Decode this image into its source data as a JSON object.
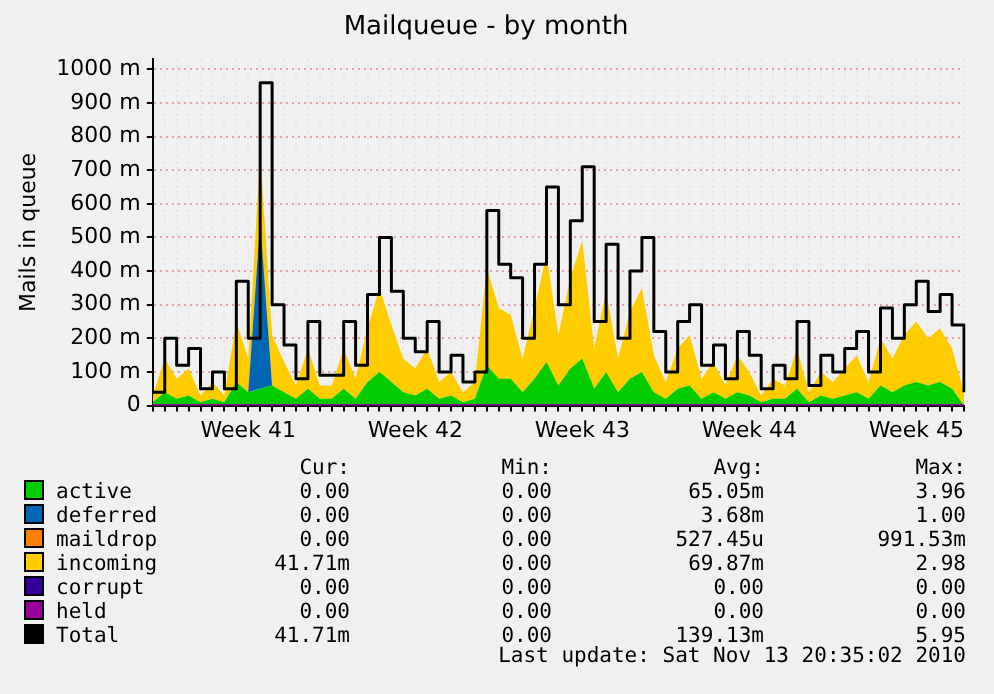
{
  "chart_data": {
    "type": "area",
    "title": "Mailqueue - by month",
    "ylabel": "Mails in queue",
    "stacked": true,
    "marker": "none",
    "grid": true,
    "legend": "bottom",
    "categories": [
      null,
      null,
      null,
      null,
      null,
      null,
      null,
      null,
      "Week 41",
      null,
      null,
      null,
      null,
      null,
      null,
      null,
      null,
      null,
      null,
      null,
      null,
      null,
      "Week 42",
      null,
      null,
      null,
      null,
      null,
      null,
      null,
      null,
      null,
      null,
      null,
      null,
      null,
      "Week 43",
      null,
      null,
      null,
      null,
      null,
      null,
      null,
      null,
      null,
      null,
      null,
      null,
      null,
      "Week 44",
      null,
      null,
      null,
      null,
      null,
      null,
      null,
      null,
      null,
      null,
      null,
      null,
      null,
      "Week 45",
      null,
      null,
      null,
      null
    ],
    "ylim": [
      0,
      1030
    ],
    "yticks": [
      0,
      {
        "value": 100,
        "label": "100 m"
      },
      {
        "value": 200,
        "label": "200 m"
      },
      {
        "value": 300,
        "label": "300 m"
      },
      {
        "value": 400,
        "label": "400 m"
      },
      {
        "value": 500,
        "label": "500 m"
      },
      {
        "value": 600,
        "label": "600 m"
      },
      {
        "value": 700,
        "label": "700 m"
      },
      {
        "value": 800,
        "label": "800 m"
      },
      {
        "value": 900,
        "label": "900 m"
      },
      {
        "value": 1000,
        "label": "1000 m"
      }
    ],
    "series": [
      {
        "name": "active",
        "color": "#00cc00",
        "values": [
          10,
          40,
          20,
          30,
          10,
          20,
          10,
          70,
          40,
          50,
          60,
          40,
          20,
          50,
          20,
          20,
          50,
          20,
          70,
          100,
          70,
          40,
          30,
          50,
          20,
          30,
          10,
          20,
          120,
          80,
          80,
          40,
          80,
          130,
          60,
          110,
          140,
          50,
          100,
          40,
          80,
          100,
          40,
          20,
          50,
          60,
          20,
          40,
          20,
          40,
          30,
          10,
          20,
          20,
          50,
          10,
          30,
          20,
          30,
          40,
          20,
          60,
          40,
          60,
          70,
          60,
          70,
          50,
          0
        ]
      },
      {
        "name": "deferred",
        "color": "#0066b3",
        "values": [
          0,
          0,
          0,
          0,
          0,
          0,
          0,
          0,
          0,
          500,
          0,
          0,
          0,
          0,
          0,
          0,
          0,
          0,
          0,
          0,
          0,
          0,
          0,
          0,
          0,
          0,
          0,
          0,
          0,
          0,
          0,
          0,
          0,
          0,
          0,
          0,
          0,
          0,
          0,
          0,
          0,
          0,
          0,
          0,
          0,
          0,
          0,
          0,
          0,
          0,
          0,
          0,
          0,
          0,
          0,
          0,
          0,
          0,
          0,
          0,
          0,
          0,
          0,
          0,
          0,
          0,
          0,
          0,
          0
        ]
      },
      {
        "name": "maildrop",
        "type": "line",
        "color": "#ff8000",
        "values": [
          null,
          null,
          null,
          null,
          null,
          null,
          null,
          null,
          null,
          null,
          null,
          null,
          null,
          null,
          null,
          null,
          null,
          null,
          null,
          null,
          null,
          null,
          null,
          null,
          null,
          null,
          null,
          null,
          null,
          null,
          null,
          null,
          null,
          null,
          null,
          null,
          null,
          null,
          null,
          null,
          null,
          null,
          null,
          null,
          null,
          null,
          null,
          null,
          null,
          null,
          null,
          null,
          null,
          null,
          null,
          null,
          null,
          null,
          null,
          null,
          null,
          null,
          null,
          null,
          null,
          null,
          null,
          null,
          null
        ]
      },
      {
        "name": "incoming",
        "color": "#ffcc00",
        "values": [
          20,
          100,
          60,
          80,
          20,
          50,
          20,
          180,
          100,
          200,
          150,
          90,
          40,
          120,
          40,
          40,
          120,
          60,
          160,
          250,
          170,
          100,
          80,
          120,
          50,
          70,
          30,
          50,
          290,
          210,
          190,
          100,
          210,
          320,
          150,
          270,
          350,
          120,
          240,
          100,
          200,
          250,
          110,
          50,
          120,
          150,
          60,
          90,
          40,
          110,
          70,
          20,
          60,
          40,
          120,
          30,
          70,
          50,
          80,
          110,
          50,
          140,
          100,
          150,
          180,
          140,
          160,
          120,
          40
        ]
      },
      {
        "name": "corrupt",
        "type": "line",
        "color": "#330099",
        "values": [
          null,
          null,
          null,
          null,
          null,
          null,
          null,
          null,
          null,
          null,
          null,
          null,
          null,
          null,
          null,
          null,
          null,
          null,
          null,
          null,
          null,
          null,
          null,
          null,
          null,
          null,
          null,
          null,
          null,
          null,
          null,
          null,
          null,
          null,
          null,
          null,
          null,
          null,
          null,
          null,
          null,
          null,
          null,
          null,
          null,
          null,
          null,
          null,
          null,
          null,
          null,
          null,
          null,
          null,
          null,
          null,
          null,
          null,
          null,
          null,
          null,
          null,
          null,
          null,
          null,
          null,
          null,
          null,
          null
        ]
      },
      {
        "name": "held",
        "type": "line",
        "color": "#990099",
        "values": [
          0,
          0,
          0,
          0,
          0,
          0,
          0,
          0,
          0,
          0,
          0,
          0,
          0,
          0,
          0,
          0,
          0,
          0,
          0,
          0,
          0,
          0,
          0,
          0,
          0,
          0,
          0,
          0,
          0,
          0,
          0,
          0,
          0,
          0,
          0,
          0,
          0,
          0,
          0,
          0,
          0,
          0,
          0,
          0,
          0,
          0,
          0,
          0,
          0,
          0,
          0,
          0,
          0,
          0,
          0,
          0,
          0,
          0,
          0,
          0,
          0,
          0,
          0,
          0,
          0,
          0,
          0,
          0,
          0
        ]
      },
      {
        "name": "Total",
        "type": "step",
        "color": "#000000",
        "values": [
          40,
          200,
          120,
          170,
          50,
          100,
          50,
          370,
          200,
          960,
          300,
          180,
          80,
          250,
          90,
          90,
          250,
          120,
          330,
          500,
          340,
          200,
          160,
          250,
          100,
          150,
          70,
          100,
          580,
          420,
          380,
          200,
          420,
          650,
          300,
          550,
          710,
          250,
          480,
          200,
          400,
          500,
          220,
          100,
          250,
          300,
          120,
          180,
          80,
          220,
          150,
          50,
          120,
          80,
          250,
          60,
          150,
          100,
          170,
          220,
          100,
          290,
          200,
          300,
          370,
          280,
          330,
          240,
          40
        ]
      }
    ],
    "annotations": [
      "Cur:",
      "Min:",
      "Avg:",
      "Max:",
      "0.00",
      "0.00",
      "65.05m",
      "3.96",
      "0.00",
      "0.00",
      "3.68m",
      "1.00",
      "0.00",
      "0.00",
      "527.45u",
      "991.53m",
      "41.71m",
      "0.00",
      "69.87m",
      "2.98",
      "0.00",
      "0.00",
      "0.00",
      "0.00",
      "0.00",
      "0.00",
      "0.00",
      "0.00",
      "41.71m",
      "0.00",
      "139.13m",
      "5.95",
      "Last update: Sat Nov 13 20:35:02 2010"
    ]
  }
}
